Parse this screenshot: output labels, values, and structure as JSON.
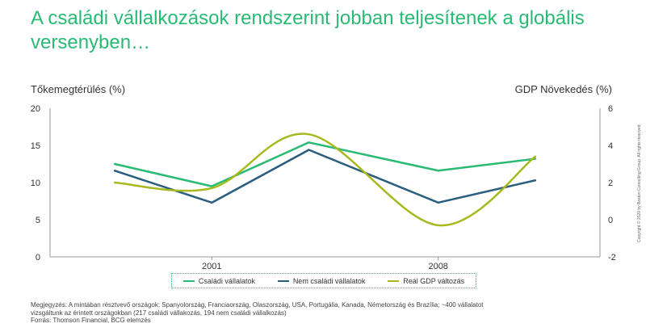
{
  "title": "A családi vállalkozások rendszerint jobban teljesítenek a globális versenyben…",
  "left_axis_title": "Tőkemegtérülés (%)",
  "right_axis_title": "GDP Növekedés (%)",
  "notes": {
    "line1": "Megjegyzés: A mintában résztvevő országok: Spanyolország, Franciaország, Olaszország, USA, Portugália, Kanada, Németország és Brazília; ~400 vállalatot",
    "line2": "vizsgáltunk az érintett országokban (217 családi vállakozás, 194 nem családi vállalkozás)",
    "line3": "Forrás: Thomson Financial, BCG elemzés"
  },
  "copyright": "Copyright © 2020 by Boston Consulting Group. All rights reserved.",
  "colors": {
    "family": "#29ba74",
    "non_family": "#295e7e",
    "gdp": "#a8b920",
    "axis": "#999999",
    "title": "#29ba74"
  },
  "chart_data": {
    "type": "line",
    "x": [
      1998,
      2001,
      2004,
      2008,
      2011
    ],
    "x_tick_labels": [
      "2001",
      "2008"
    ],
    "series": [
      {
        "name": "Családi vállalatok",
        "axis": "left",
        "values": [
          12.5,
          9.5,
          15.4,
          11.6,
          13.2
        ]
      },
      {
        "name": "Nem családi vállalatok",
        "axis": "left",
        "values": [
          11.6,
          7.3,
          14.4,
          7.3,
          10.3
        ]
      },
      {
        "name": "Reál GDP változás",
        "axis": "right",
        "values": [
          2.0,
          1.7,
          4.6,
          -0.3,
          3.4
        ]
      }
    ],
    "y_left": {
      "ticks": [
        "0",
        "5",
        "10",
        "15",
        "20"
      ],
      "ylim": [
        0,
        20
      ]
    },
    "y_right": {
      "ticks": [
        "-2",
        "0",
        "2",
        "4",
        "6"
      ],
      "ylim": [
        -2,
        6
      ]
    },
    "legend": "bottom",
    "grid": false
  }
}
